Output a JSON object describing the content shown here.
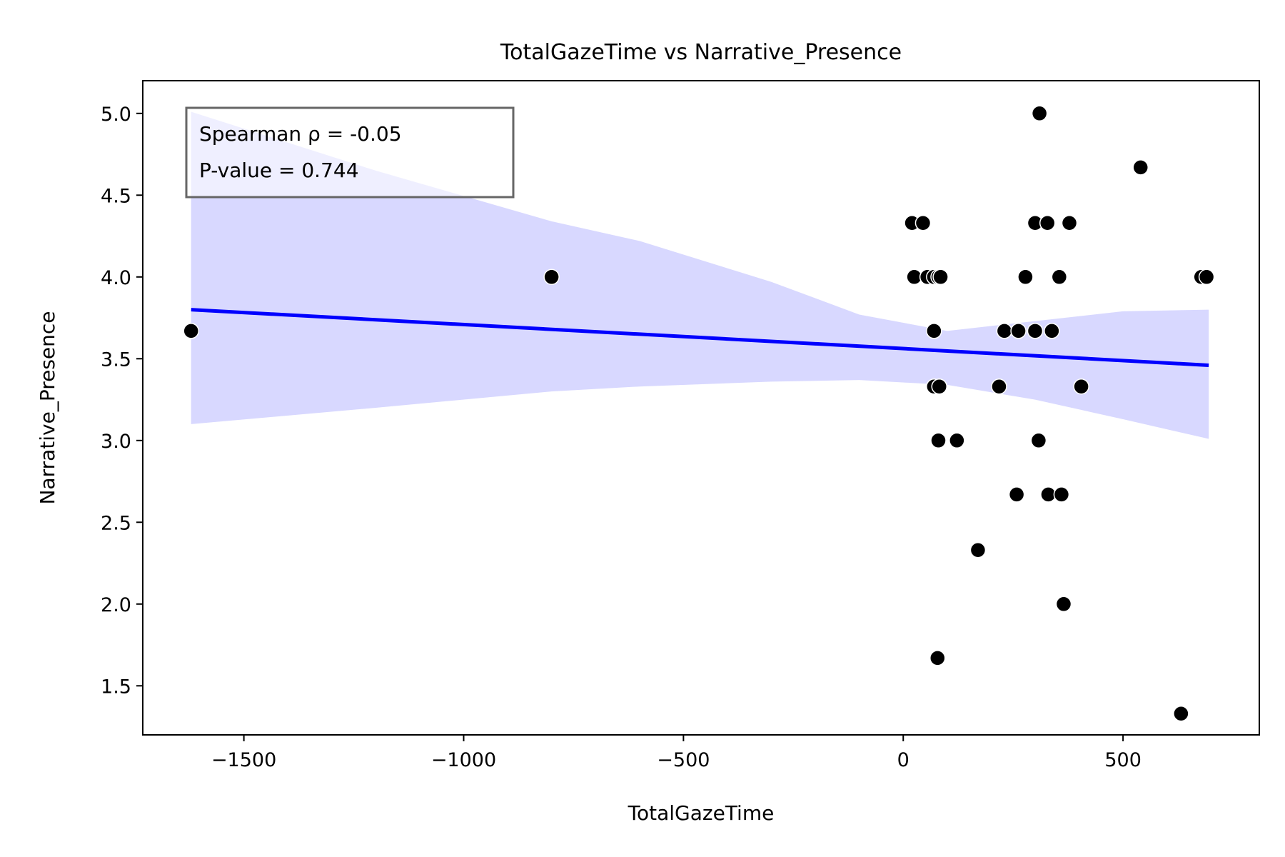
{
  "chart_data": {
    "type": "scatter",
    "title": "TotalGazeTime vs Narrative_Presence",
    "xlabel": "TotalGazeTime",
    "ylabel": "Narrative_Presence",
    "xlim": [
      -1730,
      810
    ],
    "ylim": [
      1.2,
      5.2
    ],
    "xticks": [
      -1500,
      -1000,
      -500,
      0,
      500
    ],
    "xtick_labels": [
      "−1500",
      "−1000",
      "−500",
      "0",
      "500"
    ],
    "yticks": [
      1.5,
      2.0,
      2.5,
      3.0,
      3.5,
      4.0,
      4.5,
      5.0
    ],
    "ytick_labels": [
      "1.5",
      "2.0",
      "2.5",
      "3.0",
      "3.5",
      "4.0",
      "4.5",
      "5.0"
    ],
    "grid": false,
    "annotation": {
      "lines": [
        "Spearman ρ = -0.05",
        "P-value = 0.744"
      ],
      "position": "top-left"
    },
    "points": [
      {
        "x": -1620,
        "y": 3.67
      },
      {
        "x": -800,
        "y": 4.0
      },
      {
        "x": 20,
        "y": 4.33
      },
      {
        "x": 45,
        "y": 4.33
      },
      {
        "x": 25,
        "y": 4.0
      },
      {
        "x": 55,
        "y": 4.0
      },
      {
        "x": 70,
        "y": 4.0
      },
      {
        "x": 80,
        "y": 4.0
      },
      {
        "x": 85,
        "y": 4.0
      },
      {
        "x": 70,
        "y": 3.67
      },
      {
        "x": 70,
        "y": 3.33
      },
      {
        "x": 82,
        "y": 3.33
      },
      {
        "x": 80,
        "y": 3.0
      },
      {
        "x": 122,
        "y": 3.0
      },
      {
        "x": 170,
        "y": 2.33
      },
      {
        "x": 78,
        "y": 1.67
      },
      {
        "x": 218,
        "y": 3.33
      },
      {
        "x": 230,
        "y": 3.67
      },
      {
        "x": 262,
        "y": 3.67
      },
      {
        "x": 278,
        "y": 4.0
      },
      {
        "x": 300,
        "y": 4.33
      },
      {
        "x": 300,
        "y": 3.67
      },
      {
        "x": 308,
        "y": 3.0
      },
      {
        "x": 310,
        "y": 5.0
      },
      {
        "x": 258,
        "y": 2.67
      },
      {
        "x": 328,
        "y": 4.33
      },
      {
        "x": 338,
        "y": 3.67
      },
      {
        "x": 330,
        "y": 2.67
      },
      {
        "x": 355,
        "y": 4.0
      },
      {
        "x": 360,
        "y": 2.67
      },
      {
        "x": 365,
        "y": 2.0
      },
      {
        "x": 378,
        "y": 4.33
      },
      {
        "x": 405,
        "y": 3.33
      },
      {
        "x": 540,
        "y": 4.67
      },
      {
        "x": 678,
        "y": 4.0
      },
      {
        "x": 690,
        "y": 4.0
      },
      {
        "x": 632,
        "y": 1.33
      }
    ],
    "regression": {
      "x": [
        -1620,
        695
      ],
      "y": [
        3.8,
        3.46
      ],
      "color": "#0000ff"
    },
    "confidence_band": {
      "x": [
        -1620,
        -1200,
        -800,
        -600,
        -300,
        -100,
        100,
        300,
        500,
        695
      ],
      "upper": [
        5.01,
        4.65,
        4.34,
        4.22,
        3.97,
        3.77,
        3.67,
        3.73,
        3.79,
        3.8
      ],
      "lower": [
        3.1,
        3.2,
        3.3,
        3.33,
        3.36,
        3.37,
        3.34,
        3.25,
        3.13,
        3.01
      ],
      "color": "#d8d8ff"
    },
    "colors": {
      "point": "#000000",
      "point_edge": "#ffffff",
      "line": "#0000ff",
      "band": "#d8d8ff",
      "annotation_border": "#666666"
    }
  }
}
